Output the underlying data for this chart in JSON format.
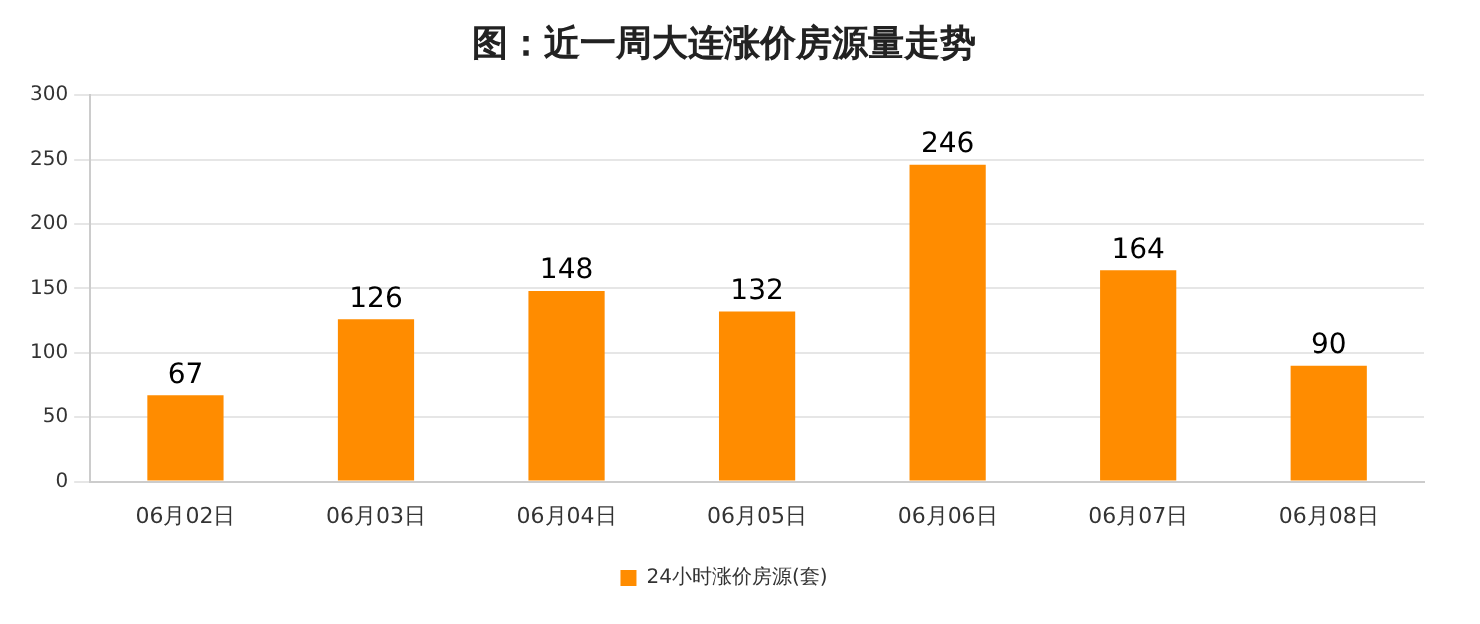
{
  "chart_data": {
    "type": "bar",
    "title": "图：近一周大连涨价房源量走势",
    "categories": [
      "06月02日",
      "06月03日",
      "06月04日",
      "06月05日",
      "06月06日",
      "06月07日",
      "06月08日"
    ],
    "series": [
      {
        "name": "24小时涨价房源(套)",
        "color": "#ff8c00",
        "values": [
          67,
          126,
          148,
          132,
          246,
          164,
          90
        ]
      }
    ],
    "ylim": [
      0,
      300
    ],
    "yticks": [
      0,
      50,
      100,
      150,
      200,
      250,
      300
    ],
    "grid": "y",
    "legend": "bottom",
    "data_labels": true
  }
}
